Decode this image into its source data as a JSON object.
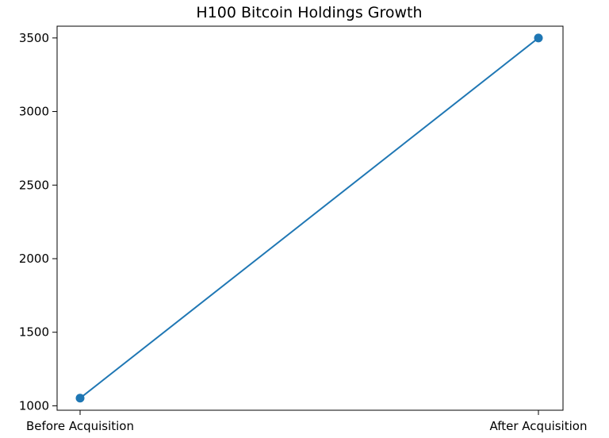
{
  "chart_data": {
    "type": "line",
    "title": "H100 Bitcoin Holdings Growth",
    "xlabel": "",
    "ylabel": "",
    "categories": [
      "Before Acquisition",
      "After Acquisition"
    ],
    "series": [
      {
        "values": [
          1052,
          3500
        ],
        "color": "#1f77b4"
      }
    ],
    "ylim": [
      970,
      3580
    ],
    "yticks": [
      1000,
      1500,
      2000,
      2500,
      3000,
      3500
    ],
    "grid": false,
    "legend": "none",
    "marker": "circle"
  }
}
